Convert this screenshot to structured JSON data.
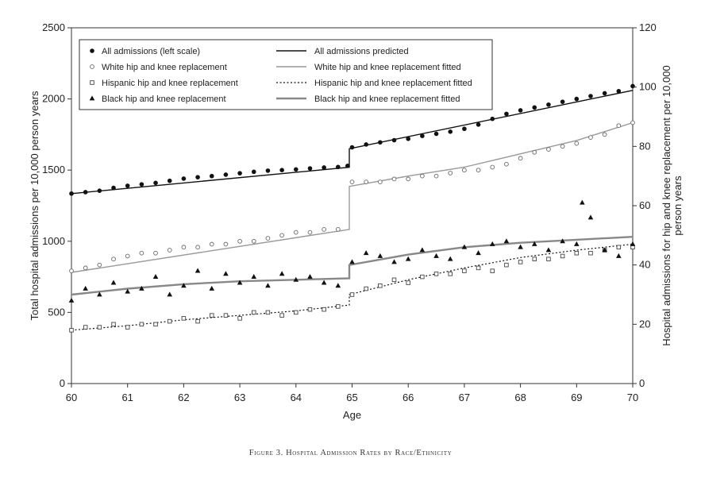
{
  "caption": "Figure 3. Hospital Admission Rates by Race/Ethnicity",
  "chart_data": {
    "type": "scatter",
    "title": "",
    "xlabel": "Age",
    "ylabel_left": "Total hospital admissions per 10,000 person years",
    "ylabel_right": [
      "Hospital admissions for hip and knee replacement per 10,000",
      "person years"
    ],
    "xlim": [
      60,
      70
    ],
    "ylim_left": [
      0,
      2500
    ],
    "ylim_right": [
      0,
      120
    ],
    "x_ticks": [
      "60",
      "61",
      "62",
      "63",
      "64",
      "65",
      "66",
      "67",
      "68",
      "69",
      "70"
    ],
    "y_ticks_left": [
      "0",
      "500",
      "1000",
      "1500",
      "2000",
      "2500"
    ],
    "y_ticks_right": [
      "0",
      "20",
      "40",
      "60",
      "80",
      "100",
      "120"
    ],
    "legend_placement": "top",
    "legend": [
      {
        "label": "All admissions (left scale)",
        "marker": "filled-circle"
      },
      {
        "label": "All admissions predicted",
        "line": "solid-black"
      },
      {
        "label": "White hip and knee replacement",
        "marker": "open-circle"
      },
      {
        "label": "White hip and knee replacement fitted",
        "line": "solid-gray"
      },
      {
        "label": "Hispanic hip and knee replacement",
        "marker": "open-square"
      },
      {
        "label": "Hispanic hip and knee replacement fitted",
        "line": "dotted-black"
      },
      {
        "label": "Black hip and knee replacement",
        "marker": "filled-triangle"
      },
      {
        "label": "Black hip and knee replacement fitted",
        "line": "solid-gray-thick"
      }
    ],
    "series": [
      {
        "name": "All admissions (left scale)",
        "axis": "left",
        "marker": "filled-circle",
        "color": "#111111",
        "x": [
          60.0,
          60.25,
          60.5,
          60.75,
          61.0,
          61.25,
          61.5,
          61.75,
          62.0,
          62.25,
          62.5,
          62.75,
          63.0,
          63.25,
          63.5,
          63.75,
          64.0,
          64.25,
          64.5,
          64.75,
          64.92,
          65.0,
          65.25,
          65.5,
          65.75,
          66.0,
          66.25,
          66.5,
          66.75,
          67.0,
          67.25,
          67.5,
          67.75,
          68.0,
          68.25,
          68.5,
          68.75,
          69.0,
          69.25,
          69.5,
          69.75,
          70.0
        ],
        "y": [
          1335,
          1345,
          1355,
          1375,
          1390,
          1400,
          1410,
          1425,
          1440,
          1450,
          1458,
          1468,
          1478,
          1488,
          1496,
          1500,
          1505,
          1512,
          1518,
          1522,
          1530,
          1660,
          1680,
          1695,
          1710,
          1720,
          1740,
          1755,
          1770,
          1790,
          1820,
          1860,
          1895,
          1920,
          1940,
          1960,
          1980,
          2000,
          2020,
          2040,
          2055,
          2090
        ]
      },
      {
        "name": "All admissions predicted",
        "axis": "left",
        "line": "solid",
        "color": "#111111",
        "x": [
          60,
          64.95,
          64.95,
          70
        ],
        "y": [
          1335,
          1520,
          1650,
          2060
        ]
      },
      {
        "name": "White hip and knee replacement",
        "axis": "right",
        "marker": "open-circle",
        "color": "#666666",
        "x": [
          60.0,
          60.25,
          60.5,
          60.75,
          61.0,
          61.25,
          61.5,
          61.75,
          62.0,
          62.25,
          62.5,
          62.75,
          63.0,
          63.25,
          63.5,
          63.75,
          64.0,
          64.25,
          64.5,
          64.75,
          65.0,
          65.25,
          65.5,
          65.75,
          66.0,
          66.25,
          66.5,
          66.75,
          67.0,
          67.25,
          67.5,
          67.75,
          68.0,
          68.25,
          68.5,
          68.75,
          69.0,
          69.25,
          69.5,
          69.75,
          70.0
        ],
        "y": [
          38,
          39,
          40,
          42,
          43,
          44,
          44,
          45,
          46,
          46,
          47,
          47,
          48,
          48,
          49,
          50,
          51,
          51,
          52,
          52,
          68,
          68,
          68,
          69,
          69,
          70,
          70,
          71,
          72,
          72,
          73,
          74,
          76,
          78,
          79,
          80,
          81,
          83,
          84,
          87,
          88
        ]
      },
      {
        "name": "White hip and knee replacement fitted",
        "axis": "right",
        "line": "solid",
        "color": "#999999",
        "x": [
          60,
          64.95,
          64.95,
          66,
          67,
          68,
          69,
          70
        ],
        "y": [
          37.5,
          52,
          66.5,
          70,
          73,
          77.5,
          82,
          88
        ]
      },
      {
        "name": "Hispanic hip and knee replacement",
        "axis": "right",
        "marker": "open-square",
        "color": "#444444",
        "x": [
          60.0,
          60.25,
          60.5,
          60.75,
          61.0,
          61.25,
          61.5,
          61.75,
          62.0,
          62.25,
          62.5,
          62.75,
          63.0,
          63.25,
          63.5,
          63.75,
          64.0,
          64.25,
          64.5,
          64.75,
          65.0,
          65.25,
          65.5,
          65.75,
          66.0,
          66.25,
          66.5,
          66.75,
          67.0,
          67.25,
          67.5,
          67.75,
          68.0,
          68.25,
          68.5,
          68.75,
          69.0,
          69.25,
          69.5,
          69.75,
          70.0
        ],
        "y": [
          18,
          19,
          19,
          20,
          19,
          20,
          20,
          21,
          22,
          21,
          23,
          23,
          22,
          24,
          24,
          23,
          24,
          25,
          25,
          26,
          30,
          32,
          33,
          35,
          34,
          36,
          37,
          37,
          38,
          39,
          38,
          40,
          41,
          42,
          42,
          43,
          44,
          44,
          45,
          46,
          46
        ]
      },
      {
        "name": "Hispanic hip and knee replacement fitted",
        "axis": "right",
        "line": "dotted",
        "color": "#111111",
        "x": [
          60,
          61,
          62,
          63,
          64,
          64.95,
          64.95,
          66,
          67,
          68,
          69,
          70
        ],
        "y": [
          18,
          19.5,
          21.5,
          23,
          24.5,
          26.5,
          30,
          35,
          39,
          42.5,
          45,
          47
        ]
      },
      {
        "name": "Black hip and knee replacement",
        "axis": "right",
        "marker": "filled-triangle",
        "color": "#111111",
        "x": [
          60.0,
          60.25,
          60.5,
          60.75,
          61.0,
          61.25,
          61.5,
          61.75,
          62.0,
          62.25,
          62.5,
          62.75,
          63.0,
          63.25,
          63.5,
          63.75,
          64.0,
          64.25,
          64.5,
          64.75,
          65.0,
          65.25,
          65.5,
          65.75,
          66.0,
          66.25,
          66.5,
          66.75,
          67.0,
          67.25,
          67.5,
          67.75,
          68.0,
          68.25,
          68.5,
          68.75,
          69.0,
          69.1,
          69.25,
          69.5,
          69.75,
          70.0
        ],
        "y": [
          28,
          32,
          30,
          34,
          31,
          32,
          36,
          30,
          33,
          38,
          32,
          37,
          34,
          36,
          33,
          37,
          35,
          36,
          34,
          33,
          41,
          44,
          43,
          41,
          42,
          45,
          43,
          42,
          46,
          44,
          47,
          48,
          46,
          47,
          45,
          48,
          47,
          61,
          56,
          45,
          43,
          47
        ]
      },
      {
        "name": "Black hip and knee replacement fitted",
        "axis": "right",
        "line": "solid-thick",
        "color": "#888888",
        "x": [
          60,
          61,
          62,
          63,
          64,
          64.95,
          64.95,
          66,
          67,
          68,
          69,
          70
        ],
        "y": [
          30,
          32,
          33.5,
          34.5,
          35,
          35.5,
          40,
          43.5,
          46,
          47.5,
          48.5,
          49.5
        ]
      }
    ]
  }
}
